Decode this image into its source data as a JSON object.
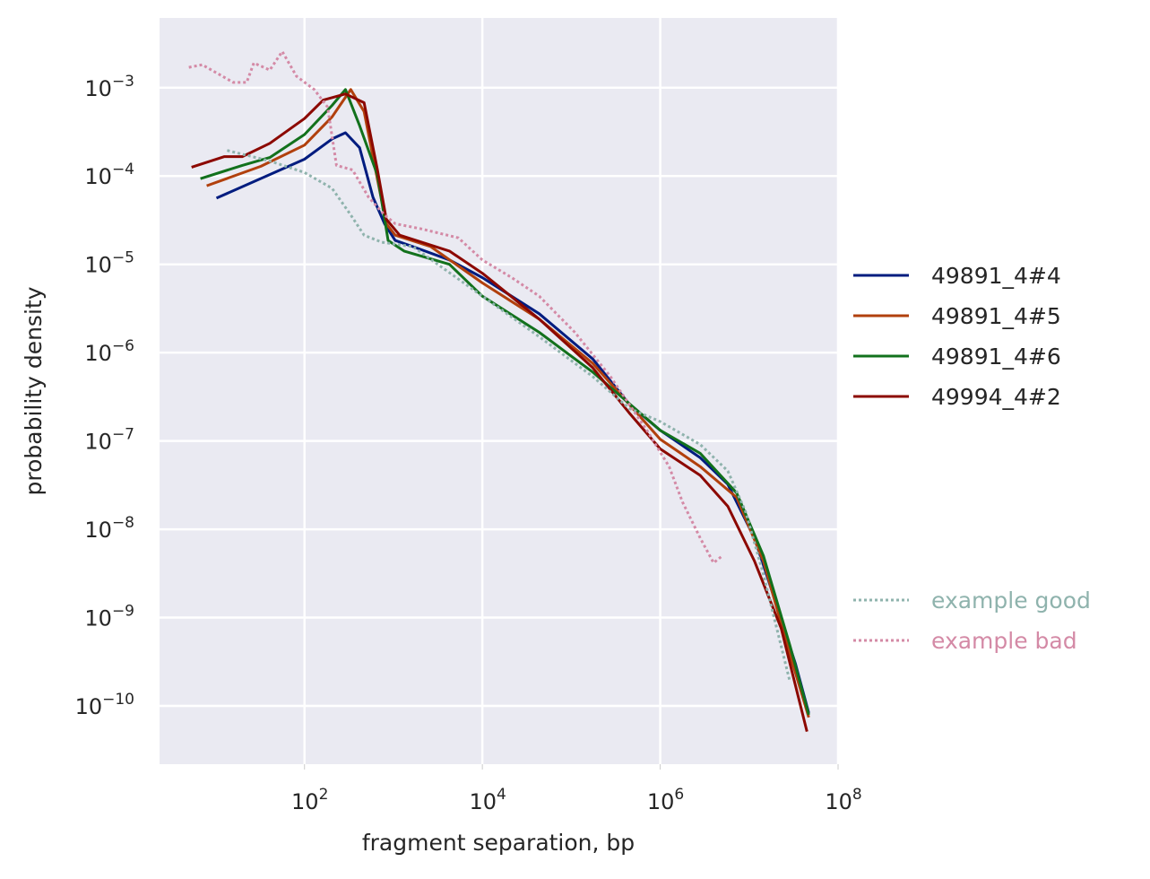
{
  "chart_data": {
    "type": "line",
    "scale": "log-log",
    "values_are_log10": true,
    "xlabel": "fragment separation, bp",
    "ylabel": "probability density",
    "xlim_log10": [
      0.37,
      8.0
    ],
    "ylim_log10": [
      -10.66,
      -2.21
    ],
    "tick_base": "10",
    "xticks_log10": [
      2,
      4,
      6,
      8
    ],
    "yticks_log10": [
      -3,
      -4,
      -5,
      -6,
      -7,
      -8,
      -9,
      -10
    ],
    "grid": true,
    "legend_placement": "right-outside",
    "series": [
      {
        "name": "49891_4#4",
        "color": "#001c7f",
        "style": "solid",
        "x": [
          1.01,
          1.71,
          2.0,
          2.31,
          2.46,
          2.62,
          2.77,
          2.9,
          3.02,
          3.22,
          3.63,
          4.0,
          4.64,
          5.24,
          5.65,
          6.0,
          6.45,
          6.76,
          7.06,
          7.26,
          7.52,
          7.67
        ],
        "y": [
          -4.25,
          -3.94,
          -3.81,
          -3.58,
          -3.51,
          -3.68,
          -4.24,
          -4.54,
          -4.73,
          -4.8,
          -4.95,
          -5.15,
          -5.56,
          -6.07,
          -6.58,
          -6.88,
          -7.19,
          -7.49,
          -8.1,
          -8.71,
          -9.52,
          -10.08
        ]
      },
      {
        "name": "49891_4#5",
        "color": "#b1400d",
        "style": "solid",
        "x": [
          0.9,
          1.51,
          2.0,
          2.31,
          2.52,
          2.67,
          2.82,
          2.92,
          3.02,
          3.42,
          4.0,
          4.64,
          5.24,
          6.0,
          6.45,
          6.86,
          7.16,
          7.46,
          7.67
        ],
        "y": [
          -4.11,
          -3.89,
          -3.65,
          -3.33,
          -3.02,
          -3.27,
          -4.04,
          -4.54,
          -4.67,
          -4.8,
          -5.21,
          -5.62,
          -6.12,
          -6.98,
          -7.29,
          -7.64,
          -8.36,
          -9.42,
          -10.13
        ]
      },
      {
        "name": "49891_4#6",
        "color": "#12711c",
        "style": "solid",
        "x": [
          0.83,
          1.3,
          1.61,
          2.0,
          2.31,
          2.46,
          2.62,
          2.82,
          2.94,
          3.12,
          3.63,
          4.0,
          4.64,
          5.24,
          6.0,
          6.45,
          6.86,
          7.16,
          7.46,
          7.67
        ],
        "y": [
          -4.03,
          -3.88,
          -3.79,
          -3.53,
          -3.2,
          -3.02,
          -3.43,
          -3.99,
          -4.73,
          -4.85,
          -5.0,
          -5.36,
          -5.77,
          -6.22,
          -6.88,
          -7.14,
          -7.59,
          -8.3,
          -9.32,
          -10.1
        ]
      },
      {
        "name": "49994_4#2",
        "color": "#8c0800",
        "style": "solid",
        "x": [
          0.73,
          1.1,
          1.3,
          1.61,
          2.0,
          2.21,
          2.46,
          2.67,
          2.82,
          2.92,
          3.07,
          3.63,
          4.0,
          4.64,
          5.24,
          5.65,
          6.0,
          6.45,
          6.76,
          7.06,
          7.36,
          7.65
        ],
        "y": [
          -3.9,
          -3.78,
          -3.78,
          -3.63,
          -3.35,
          -3.14,
          -3.07,
          -3.17,
          -3.93,
          -4.49,
          -4.67,
          -4.85,
          -5.1,
          -5.62,
          -6.17,
          -6.68,
          -7.09,
          -7.39,
          -7.74,
          -8.36,
          -9.12,
          -10.29
        ]
      },
      {
        "name": "example good",
        "color": "#8fb3ad",
        "style": "dotted",
        "x": [
          1.13,
          1.61,
          2.0,
          2.31,
          2.52,
          2.67,
          2.87,
          3.22,
          4.0,
          4.64,
          5.24,
          5.65,
          6.0,
          6.45,
          6.76,
          6.96,
          7.16,
          7.46
        ],
        "y": [
          -3.71,
          -3.83,
          -3.96,
          -4.14,
          -4.44,
          -4.67,
          -4.75,
          -4.8,
          -5.36,
          -5.82,
          -6.27,
          -6.63,
          -6.78,
          -7.04,
          -7.34,
          -7.8,
          -8.51,
          -9.73
        ]
      },
      {
        "name": "example bad",
        "color": "#d48aa6",
        "style": "dotted",
        "x": [
          0.7,
          0.85,
          1.2,
          1.35,
          1.43,
          1.61,
          1.75,
          1.91,
          2.11,
          2.26,
          2.36,
          2.54,
          2.72,
          2.9,
          3.02,
          3.32,
          3.73,
          4.0,
          4.33,
          4.64,
          5.04,
          5.44,
          5.85,
          6.1,
          6.25,
          6.45,
          6.6,
          6.7
        ],
        "y": [
          -2.77,
          -2.74,
          -2.94,
          -2.94,
          -2.72,
          -2.8,
          -2.59,
          -2.87,
          -3.02,
          -3.22,
          -3.88,
          -3.93,
          -4.24,
          -4.44,
          -4.54,
          -4.6,
          -4.7,
          -4.95,
          -5.15,
          -5.36,
          -5.77,
          -6.27,
          -6.88,
          -7.29,
          -7.69,
          -8.1,
          -8.38,
          -8.3
        ]
      }
    ]
  }
}
